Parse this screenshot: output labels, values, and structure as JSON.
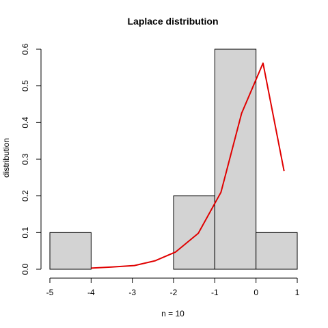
{
  "chart_data": {
    "type": "bar",
    "title": "Laplace distribution",
    "xlabel": "n = 10",
    "ylabel": "distribution",
    "xlim": [
      -5,
      1
    ],
    "ylim": [
      0,
      0.6
    ],
    "x_ticks": [
      "-5",
      "-4",
      "-3",
      "-2",
      "-1",
      "0",
      "1"
    ],
    "y_ticks": [
      "0.0",
      "0.1",
      "0.2",
      "0.3",
      "0.4",
      "0.5",
      "0.6"
    ],
    "histogram": {
      "bins": [
        {
          "from": -5,
          "to": -4,
          "density": 0.1
        },
        {
          "from": -4,
          "to": -3,
          "density": 0.0
        },
        {
          "from": -3,
          "to": -2,
          "density": 0.0
        },
        {
          "from": -2,
          "to": -1,
          "density": 0.2
        },
        {
          "from": -1,
          "to": 0,
          "density": 0.6
        },
        {
          "from": 0,
          "to": 1,
          "density": 0.1
        }
      ],
      "fill": "#d3d3d3",
      "stroke": "#000000"
    },
    "density_curve": {
      "color": "#e00000",
      "x": [
        -4.0,
        -3.5,
        -2.95,
        -2.45,
        -1.95,
        -1.4,
        -0.85,
        -0.35,
        0.17,
        0.68
      ],
      "y": [
        0.003,
        0.006,
        0.01,
        0.023,
        0.047,
        0.098,
        0.21,
        0.425,
        0.562,
        0.268
      ]
    },
    "grid": false,
    "legend": "none"
  }
}
